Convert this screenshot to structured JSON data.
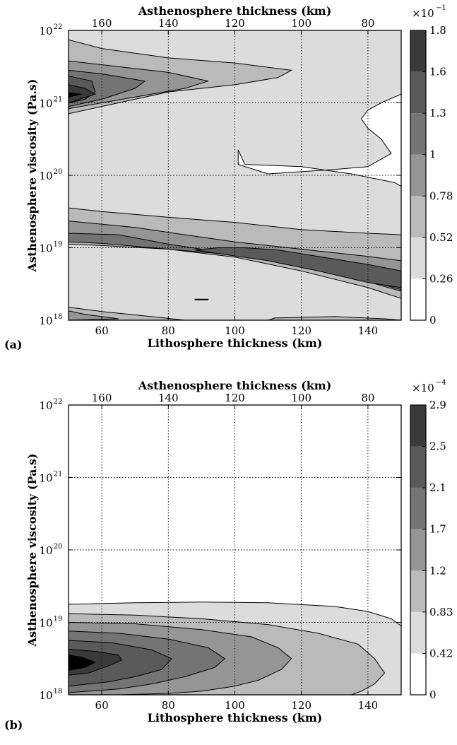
{
  "chart_data": [
    {
      "type": "contour",
      "panel_label": "(a)",
      "xlabel": "Lithosphere thickness (km)",
      "x2label": "Asthenosphere thickness (km)",
      "ylabel": "Asthenosphere viscosity (Pa.s)",
      "xlim": [
        50,
        150
      ],
      "xticks": [
        "60",
        "80",
        "100",
        "120",
        "140"
      ],
      "x2ticks": [
        "160",
        "140",
        "120",
        "100",
        "80"
      ],
      "ylim_log10": [
        18,
        22
      ],
      "yticks": [
        "18",
        "19",
        "20",
        "21",
        "22"
      ],
      "ytick_base": "10",
      "grid": true,
      "colorbar": {
        "multiplier_base": "×10",
        "multiplier_exp": "−1",
        "levels": [
          "0",
          "0.26",
          "0.52",
          "0.78",
          "1",
          "1.3",
          "1.6",
          "1.8"
        ],
        "colors": [
          "#ffffff",
          "#dcdcdc",
          "#bababa",
          "#959595",
          "#747474",
          "#5a5a5a",
          "#3a3a3a",
          "#000000"
        ]
      },
      "contour_regions": [
        {
          "level": 1,
          "points": [
            [
              50,
              18
            ],
            [
              150,
              18
            ],
            [
              150,
              22
            ],
            [
              50,
              22
            ]
          ]
        },
        {
          "level": 0,
          "points": [
            [
              101,
              20.35
            ],
            [
              103,
              20.15
            ],
            [
              120,
              20.12
            ],
            [
              135,
              20.02
            ],
            [
              148,
              19.9
            ],
            [
              150,
              19.85
            ],
            [
              150,
              21.12
            ],
            [
              144,
              21.0
            ],
            [
              140,
              20.9
            ],
            [
              138,
              20.78
            ],
            [
              140,
              20.65
            ],
            [
              144,
              20.5
            ],
            [
              147,
              20.3
            ],
            [
              140,
              20.12
            ],
            [
              130,
              20.08
            ],
            [
              120,
              20.05
            ],
            [
              110,
              20.02
            ],
            [
              101,
              20.15
            ]
          ]
        },
        {
          "level": 2,
          "points": [
            [
              50,
              21.87
            ],
            [
              60,
              21.75
            ],
            [
              80,
              21.62
            ],
            [
              100,
              21.55
            ],
            [
              117,
              21.45
            ],
            [
              113,
              21.35
            ],
            [
              100,
              21.25
            ],
            [
              80,
              21.15
            ],
            [
              65,
              21.0
            ],
            [
              50,
              20.85
            ]
          ]
        },
        {
          "level": 3,
          "points": [
            [
              50,
              21.58
            ],
            [
              65,
              21.5
            ],
            [
              80,
              21.42
            ],
            [
              92,
              21.3
            ],
            [
              85,
              21.2
            ],
            [
              70,
              21.08
            ],
            [
              50,
              20.92
            ]
          ]
        },
        {
          "level": 4,
          "points": [
            [
              50,
              21.45
            ],
            [
              60,
              21.4
            ],
            [
              73,
              21.3
            ],
            [
              70,
              21.2
            ],
            [
              60,
              21.05
            ],
            [
              50,
              20.95
            ]
          ]
        },
        {
          "level": 5,
          "points": [
            [
              50,
              21.37
            ],
            [
              57,
              21.3
            ],
            [
              58,
              21.15
            ],
            [
              55,
              21.05
            ],
            [
              50,
              21.0
            ]
          ]
        },
        {
          "level": 6,
          "points": [
            [
              50,
              21.25
            ],
            [
              55,
              21.2
            ],
            [
              58,
              21.12
            ],
            [
              50,
              21.0
            ]
          ]
        },
        {
          "level": 7,
          "points": [
            [
              50,
              21.14
            ],
            [
              54,
              21.12
            ],
            [
              50,
              21.08
            ]
          ]
        },
        {
          "level": 2,
          "points": [
            [
              50,
              19.55
            ],
            [
              60,
              19.5
            ],
            [
              80,
              19.42
            ],
            [
              100,
              19.35
            ],
            [
              120,
              19.25
            ],
            [
              140,
              19.2
            ],
            [
              150,
              19.18
            ],
            [
              150,
              18.3
            ],
            [
              140,
              18.45
            ],
            [
              120,
              18.68
            ],
            [
              100,
              18.87
            ],
            [
              80,
              18.98
            ],
            [
              60,
              19.03
            ],
            [
              50,
              19.05
            ]
          ]
        },
        {
          "level": 3,
          "points": [
            [
              50,
              19.37
            ],
            [
              70,
              19.28
            ],
            [
              85,
              19.18
            ],
            [
              100,
              19.08
            ],
            [
              120,
              18.98
            ],
            [
              140,
              18.88
            ],
            [
              150,
              18.82
            ],
            [
              150,
              18.4
            ],
            [
              140,
              18.53
            ],
            [
              120,
              18.75
            ],
            [
              100,
              18.9
            ],
            [
              80,
              19.0
            ],
            [
              60,
              19.08
            ],
            [
              50,
              19.12
            ]
          ]
        },
        {
          "level": 4,
          "points": [
            [
              50,
              19.2
            ],
            [
              65,
              19.18
            ],
            [
              72,
              19.12
            ],
            [
              80,
              19.05
            ],
            [
              90,
              18.98
            ],
            [
              100,
              18.93
            ],
            [
              120,
              18.85
            ],
            [
              140,
              18.7
            ],
            [
              150,
              18.6
            ],
            [
              150,
              18.42
            ],
            [
              140,
              18.55
            ],
            [
              120,
              18.75
            ],
            [
              100,
              18.9
            ],
            [
              80,
              18.98
            ],
            [
              60,
              19.06
            ],
            [
              50,
              19.08
            ]
          ]
        },
        {
          "level": 5,
          "points": [
            [
              88,
              18.97
            ],
            [
              95,
              19.0
            ],
            [
              103,
              19.0
            ],
            [
              113,
              18.97
            ],
            [
              125,
              18.88
            ],
            [
              140,
              18.77
            ],
            [
              150,
              18.68
            ],
            [
              150,
              18.45
            ],
            [
              140,
              18.52
            ],
            [
              125,
              18.68
            ],
            [
              110,
              18.82
            ],
            [
              95,
              18.92
            ]
          ]
        },
        {
          "level": 2,
          "points": [
            [
              50,
              18.18
            ],
            [
              60,
              18.12
            ],
            [
              75,
              18.05
            ],
            [
              85,
              18.0
            ],
            [
              50,
              18.0
            ]
          ]
        },
        {
          "level": 3,
          "points": [
            [
              50,
              18.13
            ],
            [
              55,
              18.08
            ],
            [
              65,
              18.02
            ],
            [
              50,
              18.0
            ]
          ]
        },
        {
          "level": 2,
          "points": [
            [
              88,
              18.29
            ],
            [
              92,
              18.29
            ],
            [
              92,
              18.28
            ],
            [
              88,
              18.28
            ]
          ]
        },
        {
          "level": 2,
          "points": [
            [
              110,
              18.0
            ],
            [
              112,
              18.03
            ],
            [
              130,
              18.05
            ],
            [
              145,
              18.02
            ],
            [
              150,
              18.0
            ]
          ]
        }
      ]
    },
    {
      "type": "contour",
      "panel_label": "(b)",
      "xlabel": "Lithosphere thickness (km)",
      "x2label": "Asthenosphere thickness (km)",
      "ylabel": "Asthenosphere viscosity (Pa.s)",
      "xlim": [
        50,
        150
      ],
      "xticks": [
        "60",
        "80",
        "100",
        "120",
        "140"
      ],
      "x2ticks": [
        "160",
        "140",
        "120",
        "100",
        "80"
      ],
      "ylim_log10": [
        18,
        22
      ],
      "yticks": [
        "18",
        "19",
        "20",
        "21",
        "22"
      ],
      "ytick_base": "10",
      "grid": true,
      "colorbar": {
        "multiplier_base": "×10",
        "multiplier_exp": "−4",
        "levels": [
          "0",
          "0.42",
          "0.83",
          "1.2",
          "1.7",
          "2.1",
          "2.5",
          "2.9"
        ],
        "colors": [
          "#ffffff",
          "#dcdcdc",
          "#bababa",
          "#959595",
          "#747474",
          "#5a5a5a",
          "#3a3a3a",
          "#000000"
        ]
      },
      "contour_regions": [
        {
          "level": 1,
          "points": [
            [
              50,
              19.25
            ],
            [
              70,
              19.27
            ],
            [
              90,
              19.28
            ],
            [
              110,
              19.27
            ],
            [
              130,
              19.22
            ],
            [
              140,
              19.15
            ],
            [
              147,
              19.05
            ],
            [
              150,
              18.95
            ],
            [
              150,
              18.0
            ],
            [
              50,
              18.0
            ]
          ]
        },
        {
          "level": 2,
          "points": [
            [
              50,
              19.12
            ],
            [
              70,
              19.1
            ],
            [
              90,
              19.05
            ],
            [
              110,
              18.97
            ],
            [
              125,
              18.85
            ],
            [
              137,
              18.7
            ],
            [
              142,
              18.5
            ],
            [
              145,
              18.3
            ],
            [
              142,
              18.15
            ],
            [
              138,
              18.05
            ],
            [
              135,
              18.0
            ],
            [
              50,
              18.0
            ]
          ]
        },
        {
          "level": 3,
          "points": [
            [
              50,
              19.0
            ],
            [
              70,
              18.98
            ],
            [
              90,
              18.9
            ],
            [
              105,
              18.8
            ],
            [
              113,
              18.65
            ],
            [
              117,
              18.5
            ],
            [
              114,
              18.35
            ],
            [
              107,
              18.2
            ],
            [
              100,
              18.12
            ],
            [
              90,
              18.05
            ],
            [
              80,
              18.02
            ],
            [
              65,
              18.0
            ],
            [
              50,
              18.0
            ]
          ]
        },
        {
          "level": 4,
          "points": [
            [
              50,
              18.88
            ],
            [
              65,
              18.85
            ],
            [
              80,
              18.77
            ],
            [
              92,
              18.65
            ],
            [
              97,
              18.5
            ],
            [
              94,
              18.38
            ],
            [
              85,
              18.25
            ],
            [
              75,
              18.15
            ],
            [
              65,
              18.08
            ],
            [
              50,
              18.03
            ]
          ]
        },
        {
          "level": 5,
          "points": [
            [
              50,
              18.75
            ],
            [
              63,
              18.72
            ],
            [
              75,
              18.62
            ],
            [
              81,
              18.5
            ],
            [
              78,
              18.35
            ],
            [
              70,
              18.25
            ],
            [
              62,
              18.18
            ],
            [
              50,
              18.12
            ]
          ]
        },
        {
          "level": 6,
          "points": [
            [
              50,
              18.63
            ],
            [
              58,
              18.6
            ],
            [
              65,
              18.55
            ],
            [
              66,
              18.48
            ],
            [
              62,
              18.4
            ],
            [
              56,
              18.3
            ],
            [
              50,
              18.27
            ]
          ]
        },
        {
          "level": 7,
          "points": [
            [
              50,
              18.55
            ],
            [
              54,
              18.52
            ],
            [
              58,
              18.45
            ],
            [
              55,
              18.38
            ],
            [
              50,
              18.34
            ]
          ]
        }
      ]
    }
  ]
}
